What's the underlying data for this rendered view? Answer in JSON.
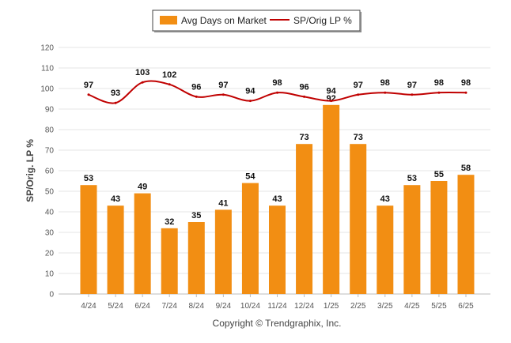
{
  "chart_data": {
    "type": "bar+line",
    "categories": [
      "4/24",
      "5/24",
      "6/24",
      "7/24",
      "8/24",
      "9/24",
      "10/24",
      "11/24",
      "12/24",
      "1/25",
      "2/25",
      "3/25",
      "4/25",
      "5/25",
      "6/25"
    ],
    "series": [
      {
        "name": "Avg Days on Market",
        "type": "bar",
        "color": "#f28e13",
        "values": [
          53,
          43,
          49,
          32,
          35,
          41,
          54,
          43,
          73,
          92,
          73,
          43,
          53,
          55,
          58
        ]
      },
      {
        "name": "SP/Orig LP %",
        "type": "line",
        "color": "#c00000",
        "values": [
          97,
          93,
          103,
          102,
          96,
          97,
          94,
          98,
          96,
          94,
          97,
          98,
          97,
          98,
          98
        ]
      }
    ],
    "ylabel": "SP/Orig. LP %",
    "ylim": [
      0,
      120
    ],
    "yticks": [
      0,
      10,
      20,
      30,
      40,
      50,
      60,
      70,
      80,
      90,
      100,
      110,
      120
    ],
    "grid": true,
    "legend": "top-center",
    "credit": "Copyright © Trendgraphix, Inc."
  }
}
